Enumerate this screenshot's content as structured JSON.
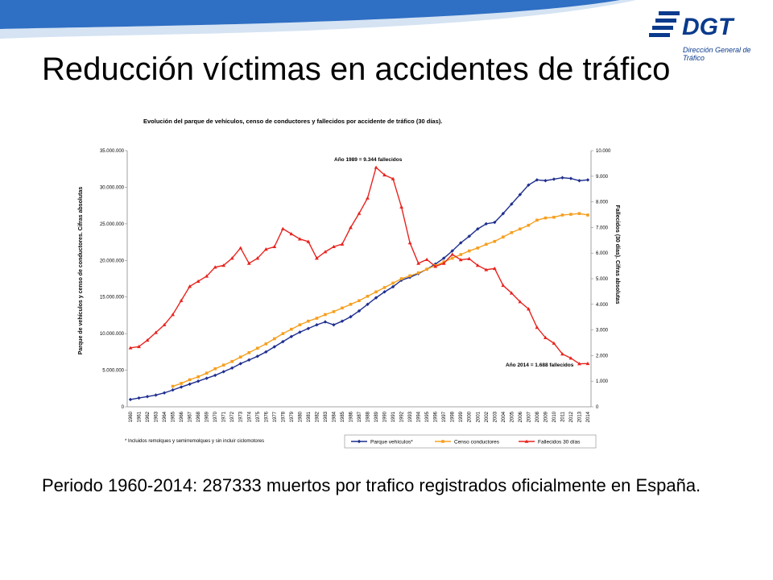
{
  "slide": {
    "title": "Reducción víctimas en accidentes de tráfico",
    "body": "Periodo 1960-2014: 287333 muertos por trafico registrados oficialmente en España.",
    "logo": {
      "name": "DGT",
      "subtitle": "Dirección General de Tráfico"
    }
  },
  "chart_data": {
    "type": "line",
    "title": "Evolución del parque de vehículos, censo de conductores y fallecidos por accidente de tráfico (30 días).",
    "ylabel": "Parque de vehículos y censo de conductores. Cifras absolutas",
    "y2label": "Fallecidos (30 días). Cifras absolutas",
    "categories": [
      "1960",
      "1961",
      "1962",
      "1963",
      "1964",
      "1965",
      "1966",
      "1967",
      "1968",
      "1969",
      "1970",
      "1971",
      "1972",
      "1973",
      "1974",
      "1975",
      "1976",
      "1977",
      "1978",
      "1979",
      "1980",
      "1981",
      "1982",
      "1983",
      "1984",
      "1985",
      "1986",
      "1987",
      "1988",
      "1989",
      "1990",
      "1991",
      "1992",
      "1993",
      "1994",
      "1995",
      "1996",
      "1997",
      "1998",
      "1999",
      "2000",
      "2001",
      "2002",
      "2003",
      "2004",
      "2005",
      "2006",
      "2007",
      "2008",
      "2009",
      "2010",
      "2011",
      "2012",
      "2013",
      "2014"
    ],
    "series": [
      {
        "name": "Parque vehículos*",
        "color": "#1f2f8f",
        "marker": "diamond",
        "values": [
          1000000,
          1200000,
          1400000,
          1600000,
          1900000,
          2300000,
          2700000,
          3100000,
          3500000,
          3900000,
          4300000,
          4800000,
          5300000,
          5900000,
          6400000,
          6900000,
          7500000,
          8200000,
          8900000,
          9600000,
          10200000,
          10700000,
          11200000,
          11600000,
          11200000,
          11700000,
          12300000,
          13100000,
          14000000,
          14900000,
          15700000,
          16400000,
          17300000,
          17700000,
          18200000,
          18800000,
          19500000,
          20300000,
          21300000,
          22400000,
          23300000,
          24300000,
          25000000,
          25200000,
          26400000,
          27700000,
          29000000,
          30300000,
          31000000,
          30900000,
          31100000,
          31300000,
          31200000,
          30900000,
          31000000
        ]
      },
      {
        "name": "Censo conductores",
        "color": "#f5a020",
        "marker": "square",
        "values": [
          null,
          null,
          null,
          null,
          null,
          2800000,
          3200000,
          3700000,
          4100000,
          4600000,
          5200000,
          5700000,
          6200000,
          6800000,
          7400000,
          8000000,
          8600000,
          9300000,
          10000000,
          10600000,
          11200000,
          11700000,
          12100000,
          12600000,
          13000000,
          13500000,
          14000000,
          14500000,
          15100000,
          15700000,
          16300000,
          16900000,
          17500000,
          17900000,
          18300000,
          18800000,
          19300000,
          19800000,
          20300000,
          20800000,
          21300000,
          21700000,
          22200000,
          22600000,
          23200000,
          23800000,
          24300000,
          24800000,
          25500000,
          25800000,
          25900000,
          26200000,
          26300000,
          26400000,
          26200000
        ]
      },
      {
        "name": "Fallecidos 30 días",
        "color": "#e8231e",
        "marker": "triangle",
        "axis": "y2",
        "values": [
          2300,
          2350,
          2600,
          2900,
          3200,
          3600,
          4150,
          4700,
          4900,
          5100,
          5450,
          5520,
          5800,
          6200,
          5600,
          5800,
          6150,
          6250,
          6950,
          6750,
          6550,
          6450,
          5800,
          6050,
          6250,
          6350,
          7000,
          7550,
          8150,
          9344,
          9050,
          8900,
          7800,
          6400,
          5600,
          5750,
          5480,
          5600,
          5950,
          5740,
          5780,
          5520,
          5350,
          5400,
          4740,
          4440,
          4100,
          3820,
          3100,
          2700,
          2480,
          2060,
          1900,
          1680,
          1688
        ]
      }
    ],
    "ylim": [
      0,
      35000000
    ],
    "yticks": [
      0,
      {
        "value": 5000000,
        "label": "5.000.000"
      },
      {
        "value": 10000000,
        "label": "10.000.000"
      },
      {
        "value": 15000000,
        "label": "15.000.000"
      },
      {
        "value": 20000000,
        "label": "20.000.000"
      },
      {
        "value": 25000000,
        "label": "25.000.000"
      },
      {
        "value": 30000000,
        "label": "30.000.000"
      },
      {
        "value": 35000000,
        "label": "35.000.000"
      }
    ],
    "y2lim": [
      0,
      10000
    ],
    "y2ticks": [
      0,
      {
        "value": 1000,
        "label": "1.000"
      },
      {
        "value": 2000,
        "label": "2.000"
      },
      {
        "value": 3000,
        "label": "3.000"
      },
      {
        "value": 4000,
        "label": "4.000"
      },
      {
        "value": 5000,
        "label": "5.000"
      },
      {
        "value": 6000,
        "label": "6.000"
      },
      {
        "value": 7000,
        "label": "7.000"
      },
      {
        "value": 8000,
        "label": "8.000"
      },
      {
        "value": 9000,
        "label": "9.000"
      },
      {
        "value": 10000,
        "label": "10.000"
      }
    ],
    "annotations": [
      "Año 1989 = 9.344 fallecidos",
      "Año 2014 = 1.688 fallecidos"
    ],
    "footnote": "* Incluidos remolques y semirremolques y sin incluir ciclomotores",
    "grid": false,
    "legend": "bottom-right"
  }
}
